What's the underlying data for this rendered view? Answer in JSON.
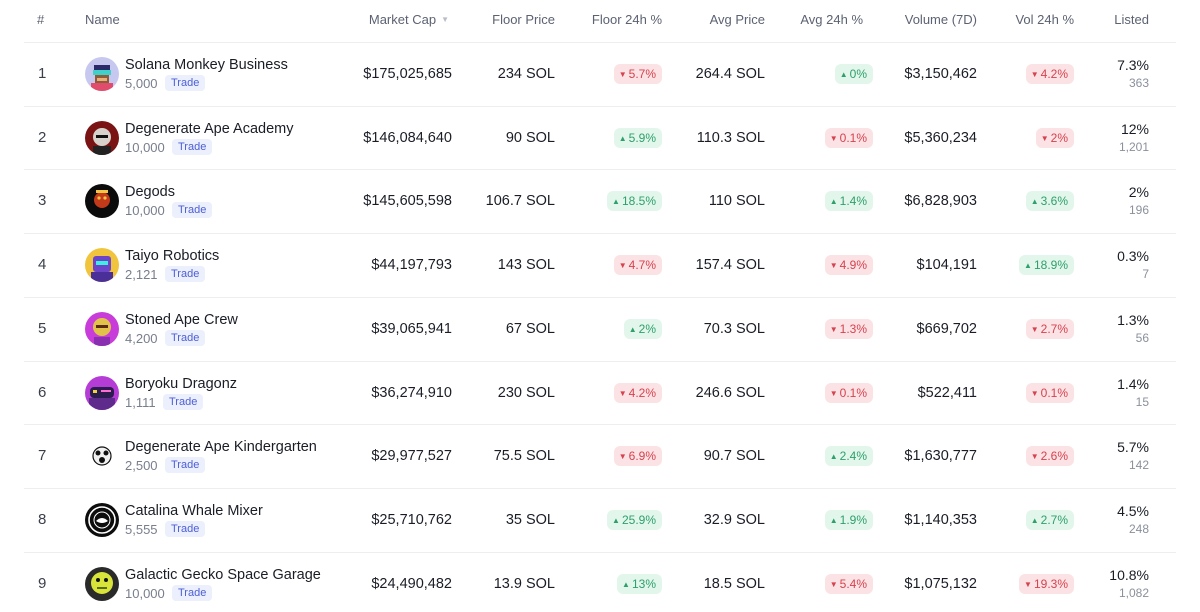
{
  "headers": {
    "rank": "#",
    "name": "Name",
    "market_cap": "Market Cap",
    "floor_price": "Floor Price",
    "floor_24h": "Floor 24h %",
    "avg_price": "Avg Price",
    "avg_24h": "Avg 24h %",
    "volume_7d": "Volume (7D)",
    "vol_24h": "Vol 24h %",
    "listed": "Listed"
  },
  "trade_label": "Trade",
  "colors": {
    "up": "#2ea06a",
    "down": "#d6424f",
    "trade": "#4b5fd6"
  },
  "rows": [
    {
      "rank": "1",
      "name": "Solana Monkey Business",
      "supply": "5,000",
      "avatar_icon": "pixel-monkey-avatar-icon",
      "market_cap": "$175,025,685",
      "floor_price": "234 SOL",
      "floor_24h": "5.7%",
      "floor_dir": "down",
      "avg_price": "264.4 SOL",
      "avg_24h": "0%",
      "avg_dir": "up",
      "volume_7d": "$3,150,462",
      "vol_24h": "4.2%",
      "vol_dir": "down",
      "listed_pct": "7.3%",
      "listed_count": "363"
    },
    {
      "rank": "2",
      "name": "Degenerate Ape Academy",
      "supply": "10,000",
      "avatar_icon": "ape-avatar-icon",
      "market_cap": "$146,084,640",
      "floor_price": "90 SOL",
      "floor_24h": "5.9%",
      "floor_dir": "up",
      "avg_price": "110.3 SOL",
      "avg_24h": "0.1%",
      "avg_dir": "down",
      "volume_7d": "$5,360,234",
      "vol_24h": "2%",
      "vol_dir": "down",
      "listed_pct": "12%",
      "listed_count": "1,201"
    },
    {
      "rank": "3",
      "name": "Degods",
      "supply": "10,000",
      "avatar_icon": "degod-avatar-icon",
      "market_cap": "$145,605,598",
      "floor_price": "106.7 SOL",
      "floor_24h": "18.5%",
      "floor_dir": "up",
      "avg_price": "110 SOL",
      "avg_24h": "1.4%",
      "avg_dir": "up",
      "volume_7d": "$6,828,903",
      "vol_24h": "3.6%",
      "vol_dir": "up",
      "listed_pct": "2%",
      "listed_count": "196"
    },
    {
      "rank": "4",
      "name": "Taiyo Robotics",
      "supply": "2,121",
      "avatar_icon": "robot-avatar-icon",
      "market_cap": "$44,197,793",
      "floor_price": "143 SOL",
      "floor_24h": "4.7%",
      "floor_dir": "down",
      "avg_price": "157.4 SOL",
      "avg_24h": "4.9%",
      "avg_dir": "down",
      "volume_7d": "$104,191",
      "vol_24h": "18.9%",
      "vol_dir": "up",
      "listed_pct": "0.3%",
      "listed_count": "7"
    },
    {
      "rank": "5",
      "name": "Stoned Ape Crew",
      "supply": "4,200",
      "avatar_icon": "stoned-ape-avatar-icon",
      "market_cap": "$39,065,941",
      "floor_price": "67 SOL",
      "floor_24h": "2%",
      "floor_dir": "up",
      "avg_price": "70.3 SOL",
      "avg_24h": "1.3%",
      "avg_dir": "down",
      "volume_7d": "$669,702",
      "vol_24h": "2.7%",
      "vol_dir": "down",
      "listed_pct": "1.3%",
      "listed_count": "56"
    },
    {
      "rank": "6",
      "name": "Boryoku Dragonz",
      "supply": "1,111",
      "avatar_icon": "dragon-avatar-icon",
      "market_cap": "$36,274,910",
      "floor_price": "230 SOL",
      "floor_24h": "4.2%",
      "floor_dir": "down",
      "avg_price": "246.6 SOL",
      "avg_24h": "0.1%",
      "avg_dir": "down",
      "volume_7d": "$522,411",
      "vol_24h": "0.1%",
      "vol_dir": "down",
      "listed_pct": "1.4%",
      "listed_count": "15"
    },
    {
      "rank": "7",
      "name": "Degenerate Ape Kindergarten",
      "supply": "2,500",
      "avatar_icon": "baby-ape-avatar-icon",
      "market_cap": "$29,977,527",
      "floor_price": "75.5 SOL",
      "floor_24h": "6.9%",
      "floor_dir": "down",
      "avg_price": "90.7 SOL",
      "avg_24h": "2.4%",
      "avg_dir": "up",
      "volume_7d": "$1,630,777",
      "vol_24h": "2.6%",
      "vol_dir": "down",
      "listed_pct": "5.7%",
      "listed_count": "142"
    },
    {
      "rank": "8",
      "name": "Catalina Whale Mixer",
      "supply": "5,555",
      "avatar_icon": "whale-seal-avatar-icon",
      "market_cap": "$25,710,762",
      "floor_price": "35 SOL",
      "floor_24h": "25.9%",
      "floor_dir": "up",
      "avg_price": "32.9 SOL",
      "avg_24h": "1.9%",
      "avg_dir": "up",
      "volume_7d": "$1,140,353",
      "vol_24h": "2.7%",
      "vol_dir": "up",
      "listed_pct": "4.5%",
      "listed_count": "248"
    },
    {
      "rank": "9",
      "name": "Galactic Gecko Space Garage",
      "supply": "10,000",
      "avatar_icon": "gecko-avatar-icon",
      "market_cap": "$24,490,482",
      "floor_price": "13.9 SOL",
      "floor_24h": "13%",
      "floor_dir": "up",
      "avg_price": "18.5 SOL",
      "avg_24h": "5.4%",
      "avg_dir": "down",
      "volume_7d": "$1,075,132",
      "vol_24h": "19.3%",
      "vol_dir": "down",
      "listed_pct": "10.8%",
      "listed_count": "1,082"
    }
  ]
}
